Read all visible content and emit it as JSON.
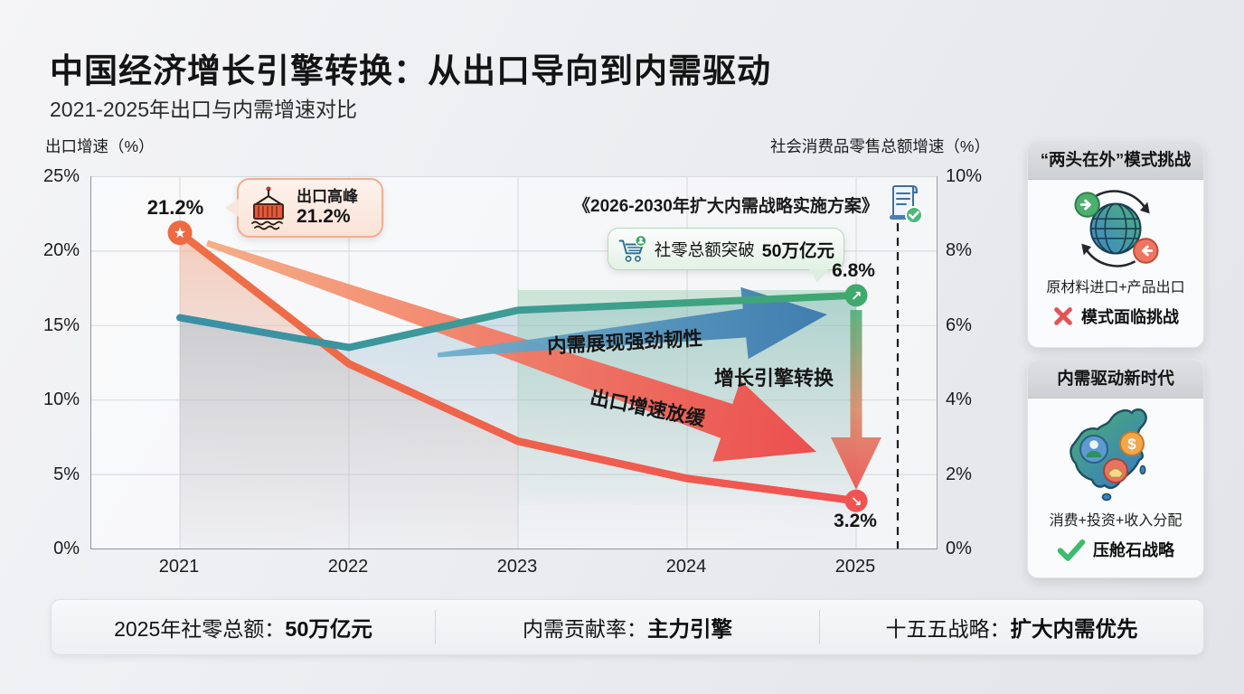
{
  "page_title": "中国经济增长引擎转换：从出口导向到内需驱动",
  "subtitle": "2021-2025年出口与内需增速对比",
  "chart": {
    "left_axis_title": "出口增速（%）",
    "right_axis_title": "社会消费品零售总额增速（%）",
    "peak_label": "21.2%",
    "retail_end_label": "6.8%",
    "export_end_label": "3.2%",
    "policy_note": "《2026-2030年扩大内需战略实施方案》",
    "export_callout": {
      "title": "出口高峰",
      "value": "21.2%"
    },
    "retail_callout": {
      "prefix": "社零总额突破",
      "highlight": "50万亿元"
    },
    "annotations": {
      "demand": "内需展现强劲韧性",
      "transition": "增长引擎转换",
      "export": "出口增速放缓"
    }
  },
  "chart_data": {
    "type": "line",
    "x": [
      "2021",
      "2022",
      "2023",
      "2024",
      "2025"
    ],
    "series": [
      {
        "name": "出口增速",
        "axis": "left",
        "values": [
          21.2,
          12.4,
          7.2,
          4.7,
          3.2
        ],
        "color_start": "#ee7046",
        "color_end": "#f15252",
        "point_labels": [
          "21.2%",
          "",
          "",
          "",
          "3.2%"
        ]
      },
      {
        "name": "社会消费品零售总额增速",
        "axis": "right",
        "values": [
          6.2,
          5.4,
          6.4,
          6.6,
          6.8
        ],
        "color_start": "#3a8fa6",
        "color_end": "#3fa96d",
        "point_labels": [
          "",
          "",
          "",
          "",
          "6.8%"
        ]
      }
    ],
    "left_axis": {
      "title": "出口增速（%）",
      "ticks": [
        "25%",
        "20%",
        "15%",
        "10%",
        "5%",
        "0%"
      ],
      "range": [
        0,
        25
      ]
    },
    "right_axis": {
      "title": "社会消费品零售总额增速（%）",
      "ticks": [
        "10%",
        "8%",
        "6%",
        "4%",
        "2%",
        "0%"
      ],
      "range": [
        0,
        10
      ]
    },
    "grid": true,
    "legend_position": "none",
    "annotations": [
      "出口高峰 21.2%",
      "社零总额突破50万亿元",
      "《2026-2030年扩大内需战略实施方案》",
      "内需展现强劲韧性",
      "增长引擎转换",
      "出口增速放缓"
    ],
    "reference_line": {
      "type": "vertical-dashed",
      "x": "2025之后"
    }
  },
  "sidebar": {
    "cards": [
      {
        "header": "“两头在外”模式挑战",
        "icon": "globe-trade-icon",
        "caption": "原材料进口+产品出口",
        "status": "模式面临挑战",
        "status_type": "negative",
        "status_icon": "x-icon"
      },
      {
        "header": "内需驱动新时代",
        "icon": "china-map-icon",
        "caption": "消费+投资+收入分配",
        "status": "压舱石战略",
        "status_type": "positive",
        "status_icon": "check-icon"
      }
    ]
  },
  "footer": {
    "stats": [
      {
        "label": "2025年社零总额：",
        "value": "50万亿元"
      },
      {
        "label": "内需贡献率：",
        "value": "主力引擎"
      },
      {
        "label": "十五五战略：",
        "value": "扩大内需优先"
      }
    ]
  },
  "icons": {
    "export_callout": "container-crane-icon",
    "retail_callout": "shopping-cart-icon",
    "policy": "document-check-icon",
    "markers": [
      "star-marker",
      "up-right-marker",
      "down-right-marker"
    ]
  },
  "colors": {
    "export_line_start": "#ee7046",
    "export_line_end": "#f15252",
    "demand_line_start": "#3a8fa6",
    "demand_line_end": "#3fa96d",
    "arrow_blue": "#3d7cb2",
    "arrow_orange": "#ee4b4b",
    "accent_red": "#e25555",
    "accent_green": "#3dbb6e",
    "callout_peach_border": "#f0ae90",
    "callout_green_border": "#b3d8bd"
  }
}
